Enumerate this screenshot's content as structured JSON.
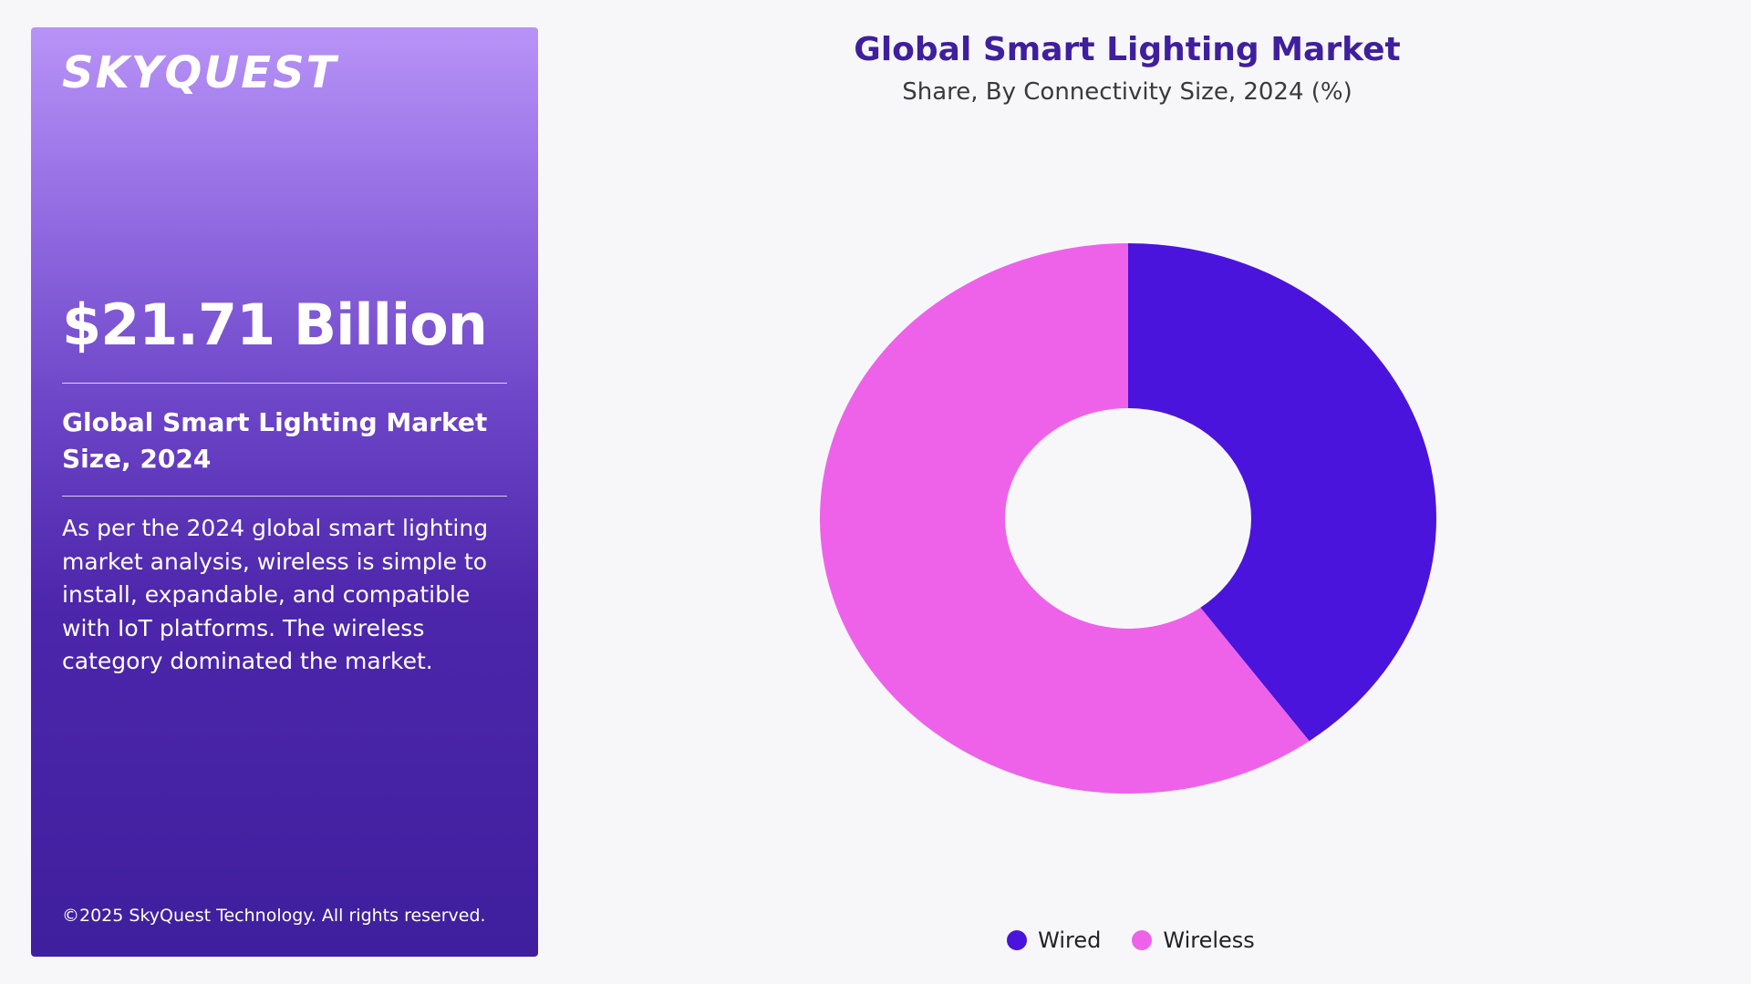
{
  "panel": {
    "logo": "SKYQUEST",
    "market_value": "$21.71 Billion",
    "size_label": "Global Smart Lighting Market Size, 2024",
    "description": "As per the 2024 global smart lighting market analysis, wireless is simple to install, expandable, and compatible with IoT platforms. The wireless category dominated the market.",
    "copyright": "©2025 SkyQuest Technology. All rights reserved."
  },
  "chart_data": {
    "type": "pie",
    "variant": "donut",
    "title": "Global Smart Lighting Market",
    "subtitle": "Share, By Connectivity Size, 2024 (%)",
    "categories": [
      "Wired",
      "Wireless"
    ],
    "values": [
      40,
      60
    ],
    "colors": [
      "#4a14dc",
      "#ee62ea"
    ],
    "legend_position": "bottom-center"
  }
}
